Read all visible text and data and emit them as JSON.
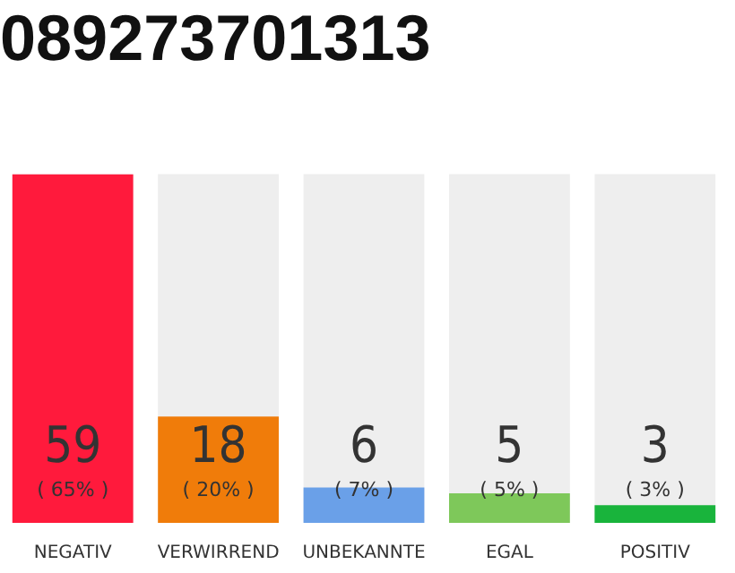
{
  "chart_data": {
    "type": "bar",
    "title": "089273701313",
    "categories": [
      "NEGATIV",
      "VERWIRREND",
      "UNBEKANNTE",
      "EGAL",
      "POSITIV"
    ],
    "values": [
      59,
      18,
      6,
      5,
      3
    ],
    "colors": [
      "#ff1a3c",
      "#f07c0a",
      "#6aa0e8",
      "#7ec85a",
      "#19b43c"
    ],
    "value_labels": [
      "59\n( 65% )",
      "18\n( 20% )",
      "6\n( 7% )",
      "5\n( 5% )",
      "3\n( 3% )"
    ],
    "ylim": [
      0,
      59
    ],
    "grid": false,
    "legend": false
  }
}
